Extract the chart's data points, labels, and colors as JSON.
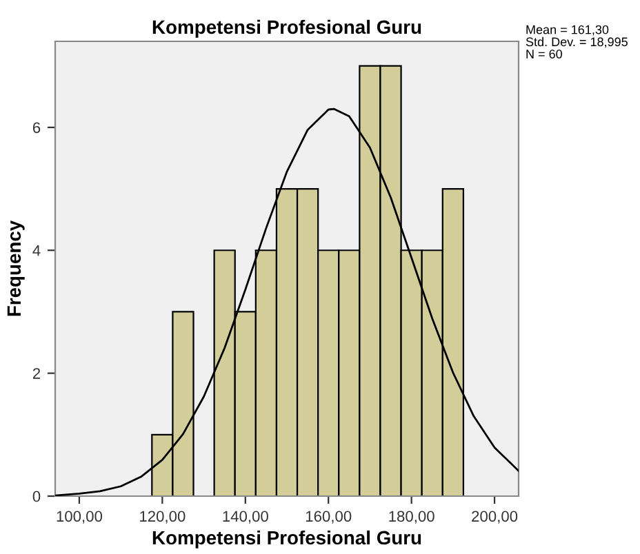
{
  "chart_data": {
    "type": "histogram",
    "title": "Kompetensi Profesional Guru",
    "xlabel": "Kompetensi Profesional Guru",
    "ylabel": "Frequency",
    "bins": [
      117.5,
      122.5,
      127.5,
      132.5,
      137.5,
      142.5,
      147.5,
      152.5,
      157.5,
      162.5,
      167.5,
      172.5,
      177.5,
      182.5,
      187.5,
      192.5
    ],
    "values": [
      1,
      3,
      0,
      4,
      3,
      4,
      5,
      5,
      4,
      4,
      7,
      7,
      4,
      4,
      5
    ],
    "color": "#d3ce99",
    "series": [
      {
        "type": "line",
        "color": "#000000",
        "x": [
          94.2,
          100,
          105,
          110,
          115,
          120,
          125,
          130,
          135,
          140,
          145,
          150,
          155,
          160,
          161.3,
          165,
          170,
          175,
          180,
          185,
          190,
          195,
          200,
          205.8
        ],
        "values": [
          0.01,
          0.04,
          0.08,
          0.16,
          0.32,
          0.59,
          1.01,
          1.62,
          2.41,
          3.36,
          4.36,
          5.28,
          5.96,
          6.29,
          6.3,
          6.18,
          5.67,
          4.86,
          3.88,
          2.89,
          2.01,
          1.3,
          0.79,
          0.41
        ]
      }
    ],
    "xlim": [
      94.2,
      205.8
    ],
    "ylim": [
      0,
      7.4
    ],
    "xticks": [
      {
        "value": 100,
        "label": "100,00"
      },
      {
        "value": 120,
        "label": "120,00"
      },
      {
        "value": 140,
        "label": "140,00"
      },
      {
        "value": 160,
        "label": "160,00"
      },
      {
        "value": 180,
        "label": "180,00"
      },
      {
        "value": 200,
        "label": "200,00"
      }
    ],
    "yticks": [
      0,
      2,
      4,
      6
    ],
    "annotations": [
      "Mean = 161,30",
      "Std. Dev. = 18,995",
      "N = 60"
    ]
  }
}
